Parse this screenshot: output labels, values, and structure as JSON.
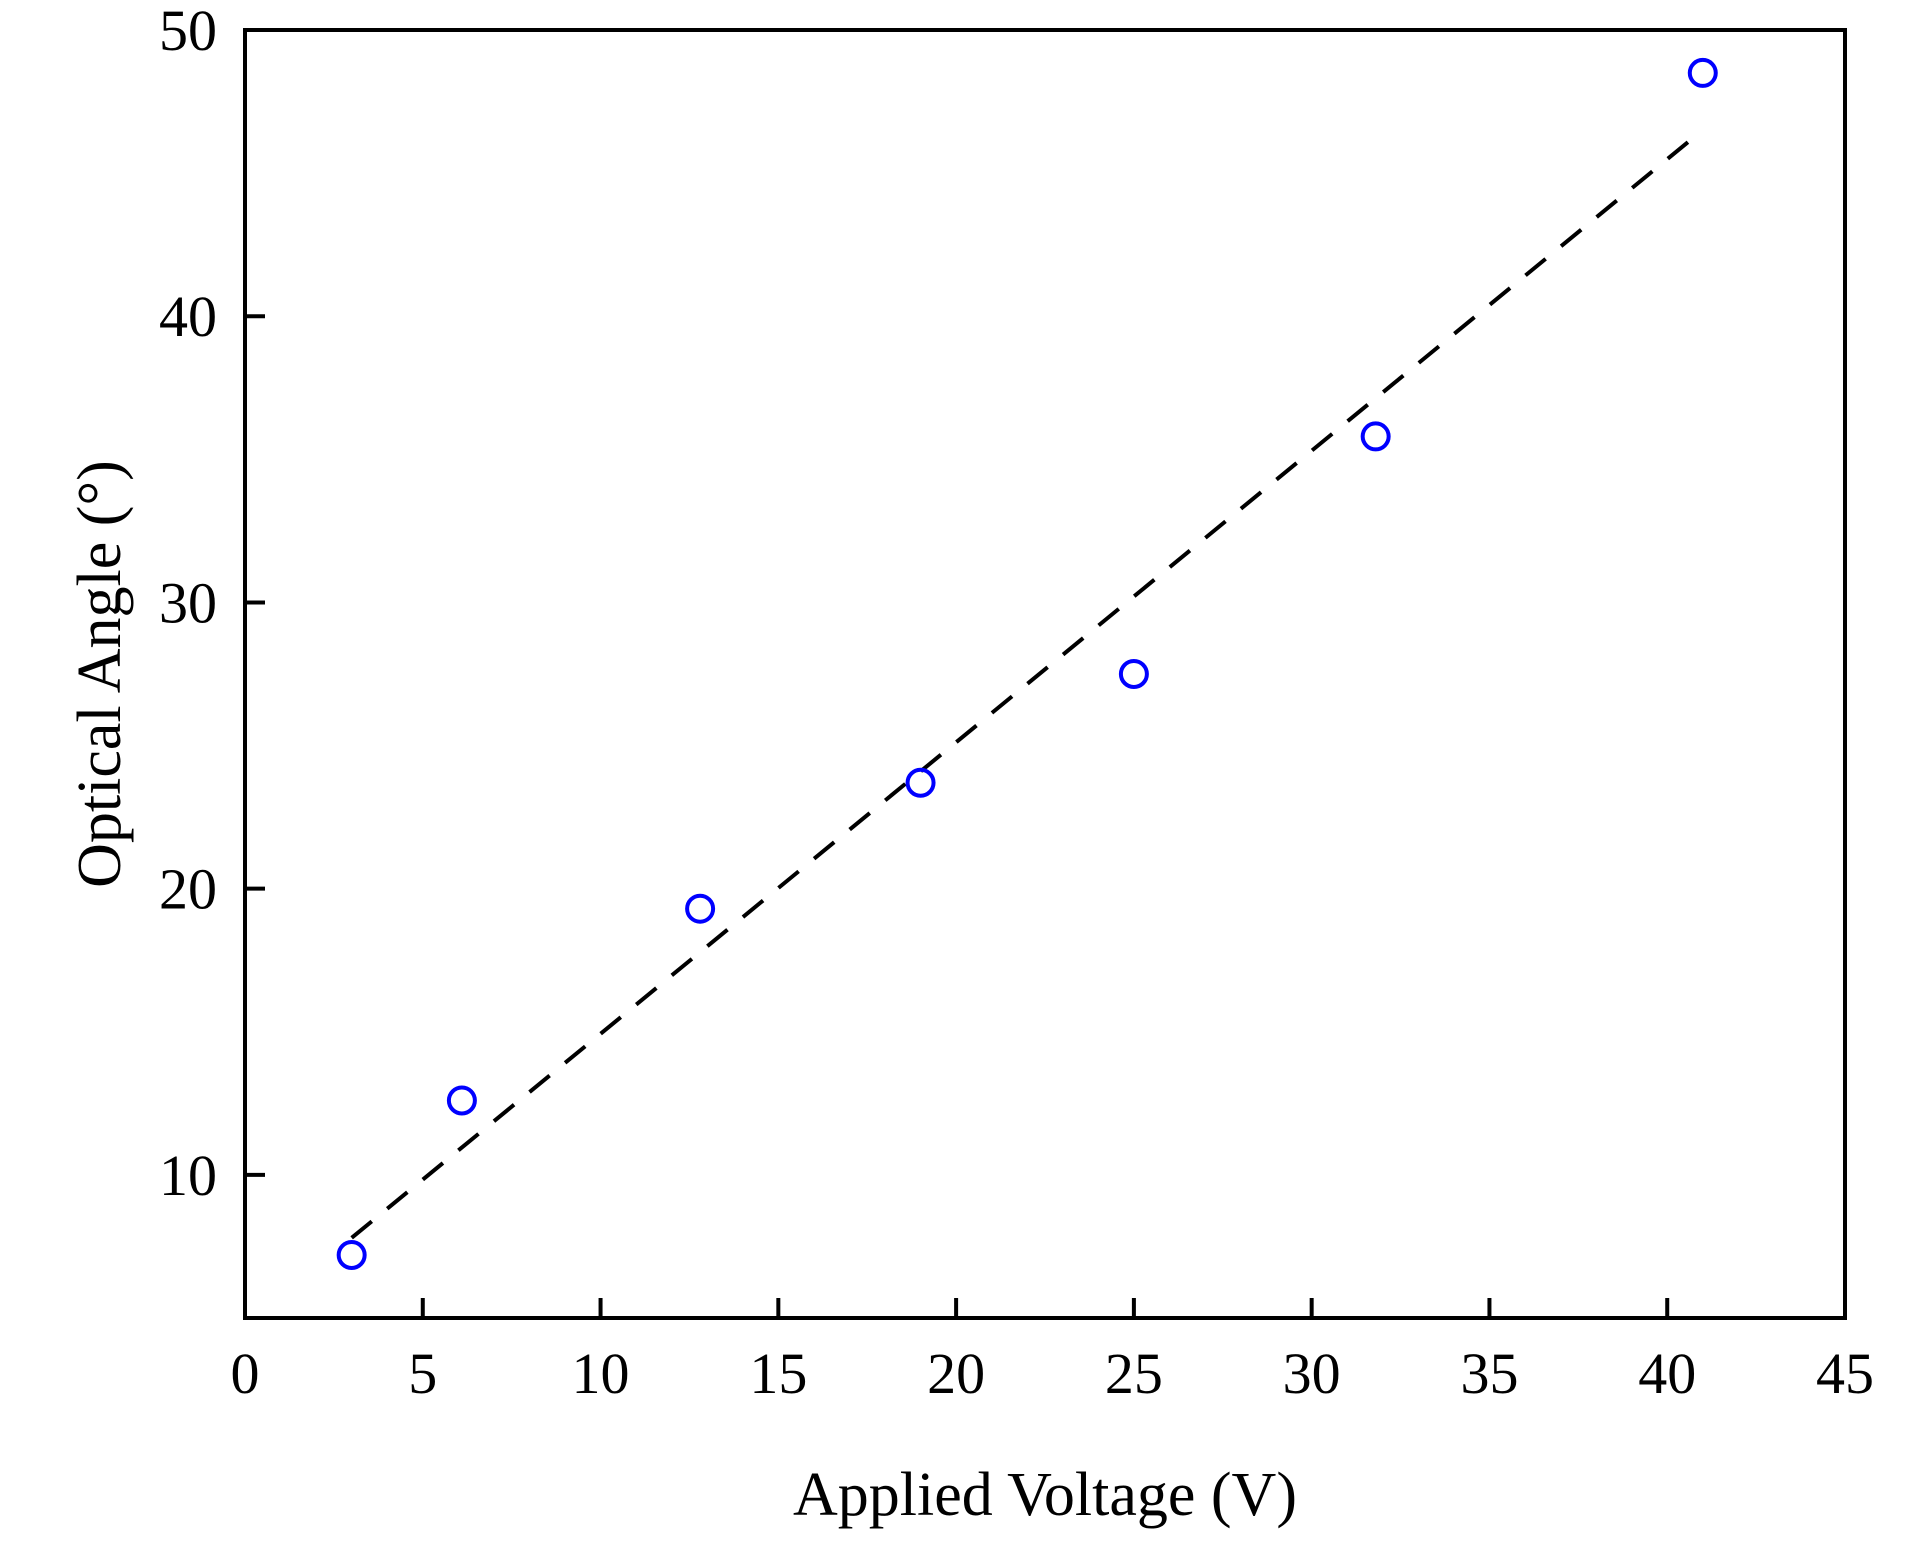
{
  "chart_data": {
    "type": "scatter",
    "title": "",
    "xlabel": "Applied Voltage (V)",
    "ylabel": "Optical Angle (°)",
    "xlim": [
      0,
      45
    ],
    "ylim": [
      5,
      50
    ],
    "xticks": [
      0,
      5,
      10,
      15,
      20,
      25,
      30,
      35,
      40,
      45
    ],
    "yticks": [
      10,
      20,
      30,
      40,
      50
    ],
    "grid": false,
    "series": [
      {
        "marker": "open-circle",
        "color": "#0000ff",
        "x": [
          3.0,
          6.1,
          12.8,
          19.0,
          25.0,
          31.8,
          41.0
        ],
        "y": [
          7.2,
          12.6,
          19.3,
          23.7,
          27.5,
          35.8,
          48.5
        ]
      }
    ],
    "fit_line": {
      "style": "dashed",
      "color": "#000000",
      "x": [
        3.0,
        40.7
      ],
      "y": [
        7.8,
        46.2
      ]
    }
  }
}
